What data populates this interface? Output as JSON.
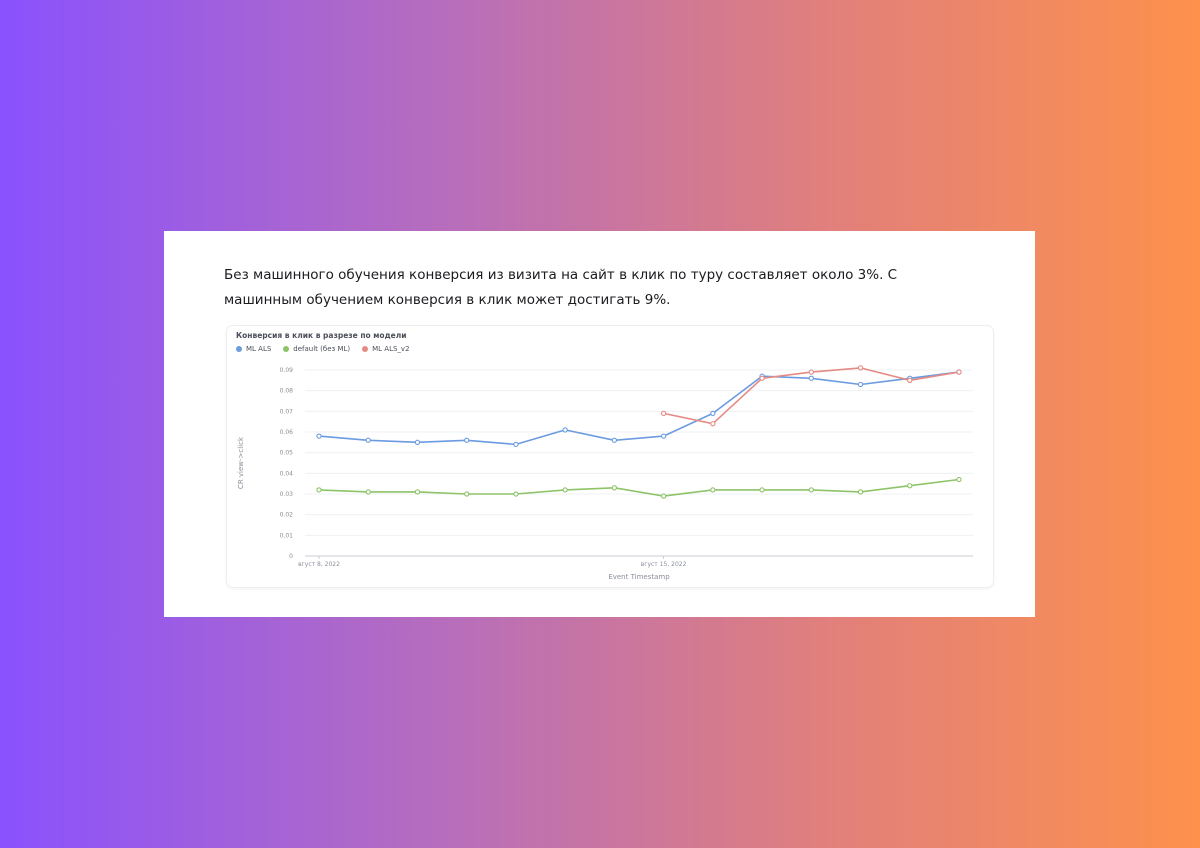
{
  "intro_text": "Без машинного обучения конверсия из визита на сайт в клик по туру составляет около 3%. С машинным обучением конверсия в клик может достигать 9%.",
  "colors": {
    "ml_als": "#6b9be0",
    "default": "#8dc467",
    "ml_als_v2": "#e58b84"
  },
  "chart_data": {
    "type": "line",
    "title": "Конверсия в клик в разрезе по модели",
    "xlabel": "Event Timestamp",
    "ylabel": "CR view->click",
    "x": [
      "2022-08-08",
      "2022-08-09",
      "2022-08-10",
      "2022-08-11",
      "2022-08-12",
      "2022-08-13",
      "2022-08-14",
      "2022-08-15",
      "2022-08-16",
      "2022-08-17",
      "2022-08-18",
      "2022-08-19",
      "2022-08-20",
      "2022-08-21"
    ],
    "x_ticks": [
      {
        "x": "2022-08-08",
        "label": "вгуст 8, 2022"
      },
      {
        "x": "2022-08-15",
        "label": "вгуст 15, 2022"
      }
    ],
    "yticks": [
      "0",
      "0.01",
      "0.02",
      "0.03",
      "0.04",
      "0.05",
      "0.06",
      "0.07",
      "0.08",
      "0.09"
    ],
    "ylim": [
      0,
      0.09
    ],
    "grid": true,
    "legend_position": "top-left",
    "series": [
      {
        "name": "ML ALS",
        "color_key": "ml_als",
        "values": [
          0.058,
          0.056,
          0.055,
          0.056,
          0.054,
          0.061,
          0.056,
          0.058,
          0.069,
          0.087,
          0.086,
          0.083,
          0.086,
          0.089
        ]
      },
      {
        "name": "default (без ML)",
        "color_key": "default",
        "values": [
          0.032,
          0.031,
          0.031,
          0.03,
          0.03,
          0.032,
          0.033,
          0.029,
          0.032,
          0.032,
          0.032,
          0.031,
          0.034,
          0.037
        ]
      },
      {
        "name": "ML ALS_v2",
        "color_key": "ml_als_v2",
        "values": [
          null,
          null,
          null,
          null,
          null,
          null,
          null,
          0.069,
          0.064,
          0.086,
          0.089,
          0.091,
          0.085,
          0.089
        ]
      }
    ]
  }
}
